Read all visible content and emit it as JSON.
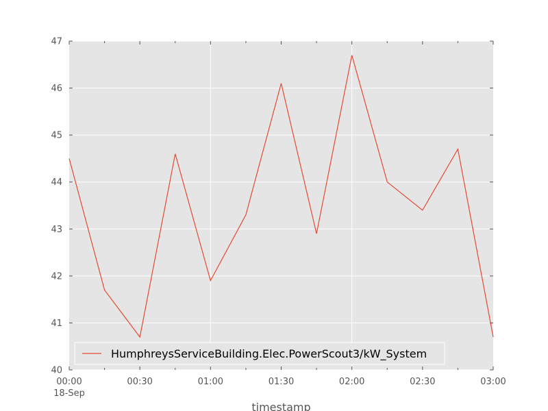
{
  "chart_data": {
    "type": "line",
    "title": "",
    "xlabel": "timestamp",
    "ylabel": "",
    "x_tick_labels": [
      "00:00",
      "00:30",
      "01:00",
      "01:30",
      "02:00",
      "02:30",
      "03:00"
    ],
    "x_tick_values": [
      0,
      30,
      60,
      90,
      120,
      150,
      180
    ],
    "x_date_label": "18-Sep",
    "x_minor_ticks": [
      15,
      45,
      75,
      105,
      135,
      165
    ],
    "x_major_gridlines": [
      60,
      120
    ],
    "xlim": [
      0,
      180
    ],
    "y_ticks": [
      40,
      41,
      42,
      43,
      44,
      45,
      46,
      47
    ],
    "y_tick_labels": [
      "40",
      "41",
      "42",
      "43",
      "44",
      "45",
      "46",
      "47"
    ],
    "ylim": [
      40,
      47
    ],
    "grid": true,
    "legend": {
      "position": "lower-left"
    },
    "series": [
      {
        "name": "HumphreysServiceBuilding.Elec.PowerScout3/kW_System",
        "color": "#e24a33",
        "x": [
          0,
          15,
          30,
          45,
          60,
          75,
          90,
          105,
          120,
          135,
          150,
          165,
          180
        ],
        "values": [
          44.5,
          41.7,
          40.7,
          44.6,
          41.9,
          43.3,
          46.1,
          42.9,
          46.7,
          44.0,
          43.4,
          44.7,
          40.7
        ]
      }
    ]
  }
}
